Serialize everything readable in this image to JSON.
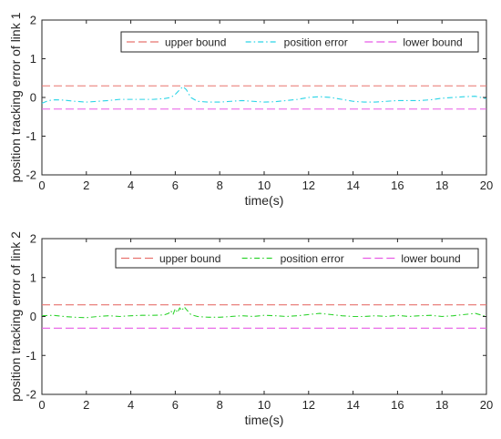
{
  "chart_data": [
    {
      "type": "line",
      "xlabel": "time(s)",
      "ylabel": "position tracking error of link 1",
      "xlim": [
        0,
        20
      ],
      "ylim": [
        -2,
        2
      ],
      "x_ticks": [
        "0",
        "2",
        "4",
        "6",
        "8",
        "10",
        "12",
        "14",
        "16",
        "18",
        "20"
      ],
      "y_ticks": [
        "-2",
        "-1",
        "0",
        "1",
        "2"
      ],
      "grid": false,
      "legend_placement": "top-right",
      "series": [
        {
          "name": "upper bound",
          "color": "#e8736f",
          "style": "dashed",
          "x": [
            0,
            20
          ],
          "y": [
            0.3,
            0.3
          ]
        },
        {
          "name": "position error",
          "color": "#2ad4e6",
          "style": "dashdot",
          "x": [
            0,
            0.3,
            0.6,
            1,
            1.5,
            2,
            2.5,
            3,
            3.5,
            4,
            4.5,
            5,
            5.5,
            5.8,
            6.0,
            6.2,
            6.35,
            6.5,
            6.7,
            7,
            7.5,
            8,
            8.5,
            9,
            9.5,
            10,
            10.5,
            11,
            11.5,
            12,
            12.5,
            13,
            13.5,
            14,
            14.5,
            15,
            15.5,
            16,
            16.5,
            17,
            17.5,
            18,
            18.5,
            19,
            19.5,
            20
          ],
          "y": [
            -0.15,
            -0.08,
            -0.06,
            -0.07,
            -0.1,
            -0.12,
            -0.1,
            -0.08,
            -0.05,
            -0.05,
            -0.05,
            -0.05,
            -0.03,
            0.0,
            0.08,
            0.2,
            0.28,
            0.2,
            0.0,
            -0.1,
            -0.12,
            -0.12,
            -0.1,
            -0.08,
            -0.1,
            -0.12,
            -0.11,
            -0.08,
            -0.05,
            0.0,
            0.02,
            0.0,
            -0.05,
            -0.1,
            -0.12,
            -0.12,
            -0.1,
            -0.08,
            -0.08,
            -0.08,
            -0.06,
            -0.02,
            0.0,
            0.02,
            0.03,
            -0.03
          ]
        },
        {
          "name": "lower bound",
          "color": "#e85be6",
          "style": "dashed",
          "x": [
            0,
            20
          ],
          "y": [
            -0.3,
            -0.3
          ]
        }
      ]
    },
    {
      "type": "line",
      "xlabel": "time(s)",
      "ylabel": "position tracking error of link 2",
      "xlim": [
        0,
        20
      ],
      "ylim": [
        -2,
        2
      ],
      "x_ticks": [
        "0",
        "2",
        "4",
        "6",
        "8",
        "10",
        "12",
        "14",
        "16",
        "18",
        "20"
      ],
      "y_ticks": [
        "-2",
        "-1",
        "0",
        "1",
        "2"
      ],
      "grid": false,
      "legend_placement": "top-right",
      "series": [
        {
          "name": "upper bound",
          "color": "#e8736f",
          "style": "dashed",
          "x": [
            0,
            20
          ],
          "y": [
            0.3,
            0.3
          ]
        },
        {
          "name": "position error",
          "color": "#2fd32f",
          "style": "dashdot",
          "x": [
            0,
            0.5,
            1,
            1.5,
            2,
            2.5,
            3,
            3.5,
            4,
            4.5,
            5,
            5.5,
            5.7,
            5.8,
            5.9,
            6.0,
            6.1,
            6.2,
            6.3,
            6.4,
            6.5,
            6.7,
            7,
            7.5,
            8,
            8.5,
            9,
            9.5,
            10,
            10.5,
            11,
            11.5,
            12,
            12.5,
            13,
            13.5,
            14,
            14.5,
            15,
            15.5,
            16,
            16.5,
            17,
            17.5,
            18,
            18.5,
            19,
            19.5,
            20
          ],
          "y": [
            0.02,
            0.03,
            0.0,
            -0.02,
            -0.03,
            0.0,
            0.02,
            0.0,
            0.02,
            0.03,
            0.03,
            0.04,
            0.08,
            0.15,
            0.05,
            0.2,
            0.1,
            0.22,
            0.15,
            0.25,
            0.18,
            0.05,
            0.0,
            -0.02,
            -0.02,
            0.0,
            0.02,
            0.0,
            0.03,
            0.02,
            0.0,
            0.02,
            0.05,
            0.08,
            0.05,
            0.02,
            0.0,
            0.0,
            0.02,
            0.0,
            0.03,
            0.0,
            0.02,
            0.03,
            0.0,
            0.02,
            0.05,
            0.08,
            0.0
          ]
        },
        {
          "name": "lower bound",
          "color": "#e85be6",
          "style": "dashed",
          "x": [
            0,
            20
          ],
          "y": [
            -0.3,
            -0.3
          ]
        }
      ]
    }
  ]
}
